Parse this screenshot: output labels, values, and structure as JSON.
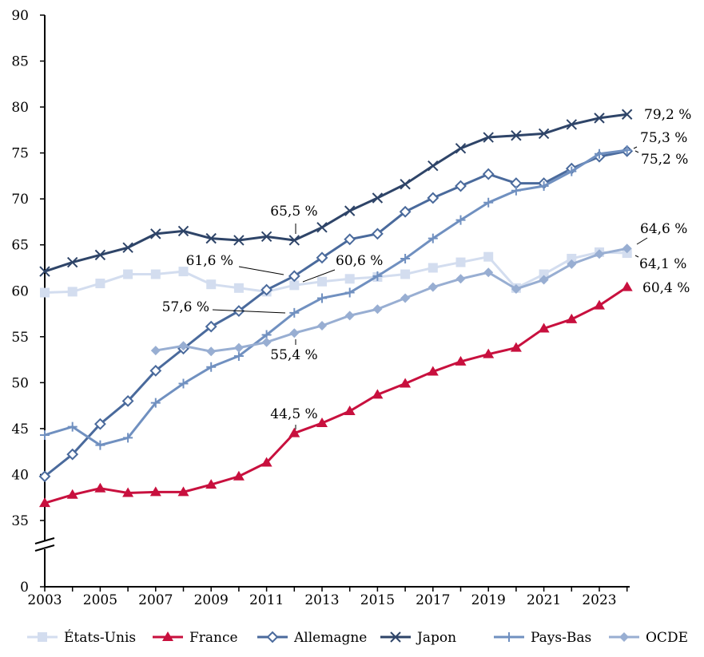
{
  "chart_data": {
    "type": "line",
    "title": "",
    "xlabel": "",
    "ylabel": "",
    "ylim": [
      35,
      90
    ],
    "y_ticks": [
      "0",
      "35",
      "40",
      "45",
      "50",
      "55",
      "60",
      "65",
      "70",
      "75",
      "80",
      "85",
      "90"
    ],
    "x_ticks": [
      "2003",
      "2005",
      "2007",
      "2009",
      "2011",
      "2013",
      "2015",
      "2017",
      "2019",
      "2021",
      "2023"
    ],
    "axis_break": true,
    "legend_position": "bottom",
    "x": [
      2003,
      2004,
      2005,
      2006,
      2007,
      2008,
      2009,
      2010,
      2011,
      2012,
      2013,
      2014,
      2015,
      2016,
      2017,
      2018,
      2019,
      2020,
      2021,
      2022,
      2023,
      2024
    ],
    "series": [
      {
        "name": "États-Unis",
        "color": "#d3ddef",
        "marker": "square",
        "values": [
          59.8,
          59.9,
          60.8,
          61.8,
          61.8,
          62.1,
          60.7,
          60.3,
          59.9,
          60.6,
          61.0,
          61.3,
          61.5,
          61.8,
          62.5,
          63.1,
          63.7,
          60.3,
          61.8,
          63.5,
          64.2,
          64.1
        ]
      },
      {
        "name": "France",
        "color": "#c8103e",
        "marker": "triangle",
        "values": [
          36.9,
          37.8,
          38.5,
          38.0,
          38.1,
          38.1,
          38.9,
          39.8,
          41.3,
          44.5,
          45.6,
          46.9,
          48.7,
          49.9,
          51.2,
          52.3,
          53.1,
          53.8,
          55.9,
          56.9,
          58.4,
          60.4
        ]
      },
      {
        "name": "Allemagne",
        "color": "#4a6a9c",
        "marker": "diamond-open",
        "values": [
          39.8,
          42.2,
          45.5,
          48.0,
          51.3,
          53.7,
          56.1,
          57.8,
          60.1,
          61.6,
          63.6,
          65.6,
          66.2,
          68.6,
          70.1,
          71.4,
          72.7,
          71.7,
          71.7,
          73.3,
          74.6,
          75.2
        ]
      },
      {
        "name": "Japon",
        "color": "#2e4468",
        "marker": "x",
        "values": [
          62.1,
          63.1,
          63.9,
          64.7,
          66.2,
          66.5,
          65.7,
          65.5,
          65.9,
          65.5,
          66.9,
          68.7,
          70.1,
          71.6,
          73.6,
          75.5,
          76.7,
          76.9,
          77.1,
          78.1,
          78.8,
          79.2
        ]
      },
      {
        "name": "Pays-Bas",
        "color": "#7090c0",
        "marker": "plus",
        "values": [
          44.3,
          45.2,
          43.2,
          44.0,
          47.8,
          49.9,
          51.7,
          52.9,
          55.2,
          57.6,
          59.2,
          59.8,
          61.6,
          63.5,
          65.7,
          67.7,
          69.6,
          70.9,
          71.4,
          73.0,
          74.9,
          75.3
        ]
      },
      {
        "name": "OCDE",
        "color": "#98aed2",
        "marker": "diamond",
        "values": [
          null,
          null,
          null,
          null,
          53.5,
          54.0,
          53.4,
          53.8,
          54.4,
          55.4,
          56.2,
          57.3,
          58.0,
          59.2,
          60.4,
          61.3,
          62.0,
          60.2,
          61.2,
          62.9,
          64.0,
          64.6
        ]
      }
    ],
    "annotations": [
      {
        "series": "Japon",
        "x": 2012,
        "text": "65,5 %"
      },
      {
        "series": "Allemagne",
        "x": 2012,
        "text": "61,6 %"
      },
      {
        "series": "États-Unis",
        "x": 2012,
        "text": "60,6 %"
      },
      {
        "series": "Pays-Bas",
        "x": 2012,
        "text": "57,6 %"
      },
      {
        "series": "OCDE",
        "x": 2012,
        "text": "55,4 %"
      },
      {
        "series": "France",
        "x": 2012,
        "text": "44,5 %"
      },
      {
        "series": "Japon",
        "x": 2024,
        "text": "79,2 %"
      },
      {
        "series": "Pays-Bas",
        "x": 2024,
        "text": "75,3 %"
      },
      {
        "series": "Allemagne",
        "x": 2024,
        "text": "75,2 %"
      },
      {
        "series": "OCDE",
        "x": 2024,
        "text": "64,6 %"
      },
      {
        "series": "États-Unis",
        "x": 2024,
        "text": "64,1 %"
      },
      {
        "series": "France",
        "x": 2024,
        "text": "60,4 %"
      }
    ]
  }
}
